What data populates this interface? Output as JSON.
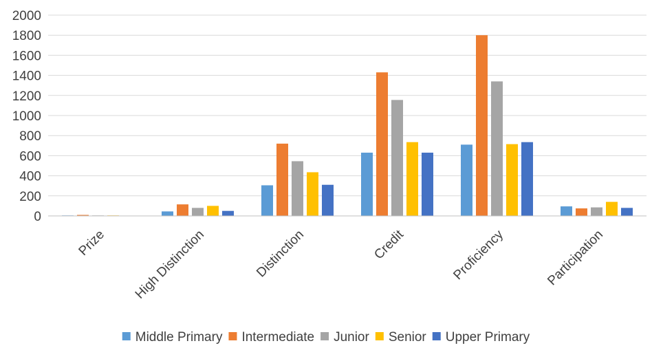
{
  "chart_data": {
    "type": "bar",
    "title": "",
    "xlabel": "",
    "ylabel": "",
    "ylim": [
      0,
      2000
    ],
    "yticks": [
      0,
      200,
      400,
      600,
      800,
      1000,
      1200,
      1400,
      1600,
      1800,
      2000
    ],
    "grid": true,
    "legend_position": "bottom",
    "categories": [
      "Prize",
      "High Distinction",
      "Distinction",
      "Credit",
      "Proficiency",
      "Participation"
    ],
    "series": [
      {
        "name": "Middle Primary",
        "color": "#5b9bd5",
        "values": [
          5,
          45,
          305,
          630,
          710,
          95
        ]
      },
      {
        "name": "Intermediate",
        "color": "#ed7d31",
        "values": [
          10,
          115,
          720,
          1430,
          1800,
          75
        ]
      },
      {
        "name": "Junior",
        "color": "#a5a5a5",
        "values": [
          5,
          80,
          545,
          1155,
          1340,
          85
        ]
      },
      {
        "name": "Senior",
        "color": "#ffc000",
        "values": [
          5,
          100,
          435,
          735,
          715,
          140
        ]
      },
      {
        "name": "Upper Primary",
        "color": "#4472c4",
        "values": [
          0,
          50,
          310,
          630,
          735,
          80
        ]
      }
    ]
  }
}
